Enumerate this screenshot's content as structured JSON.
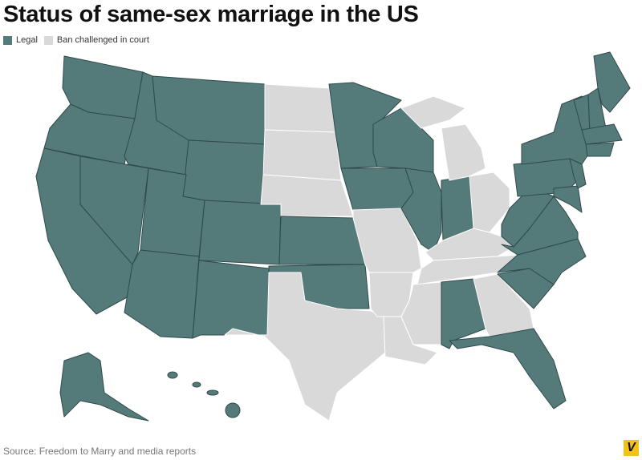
{
  "title": "Status of same-sex marriage in the US",
  "legend": [
    {
      "label": "Legal",
      "color": "#557a7a"
    },
    {
      "label": "Ban challenged in court",
      "color": "#d9d9d9"
    }
  ],
  "source": "Source: Freedom to Marry and media reports",
  "logo": "V"
}
